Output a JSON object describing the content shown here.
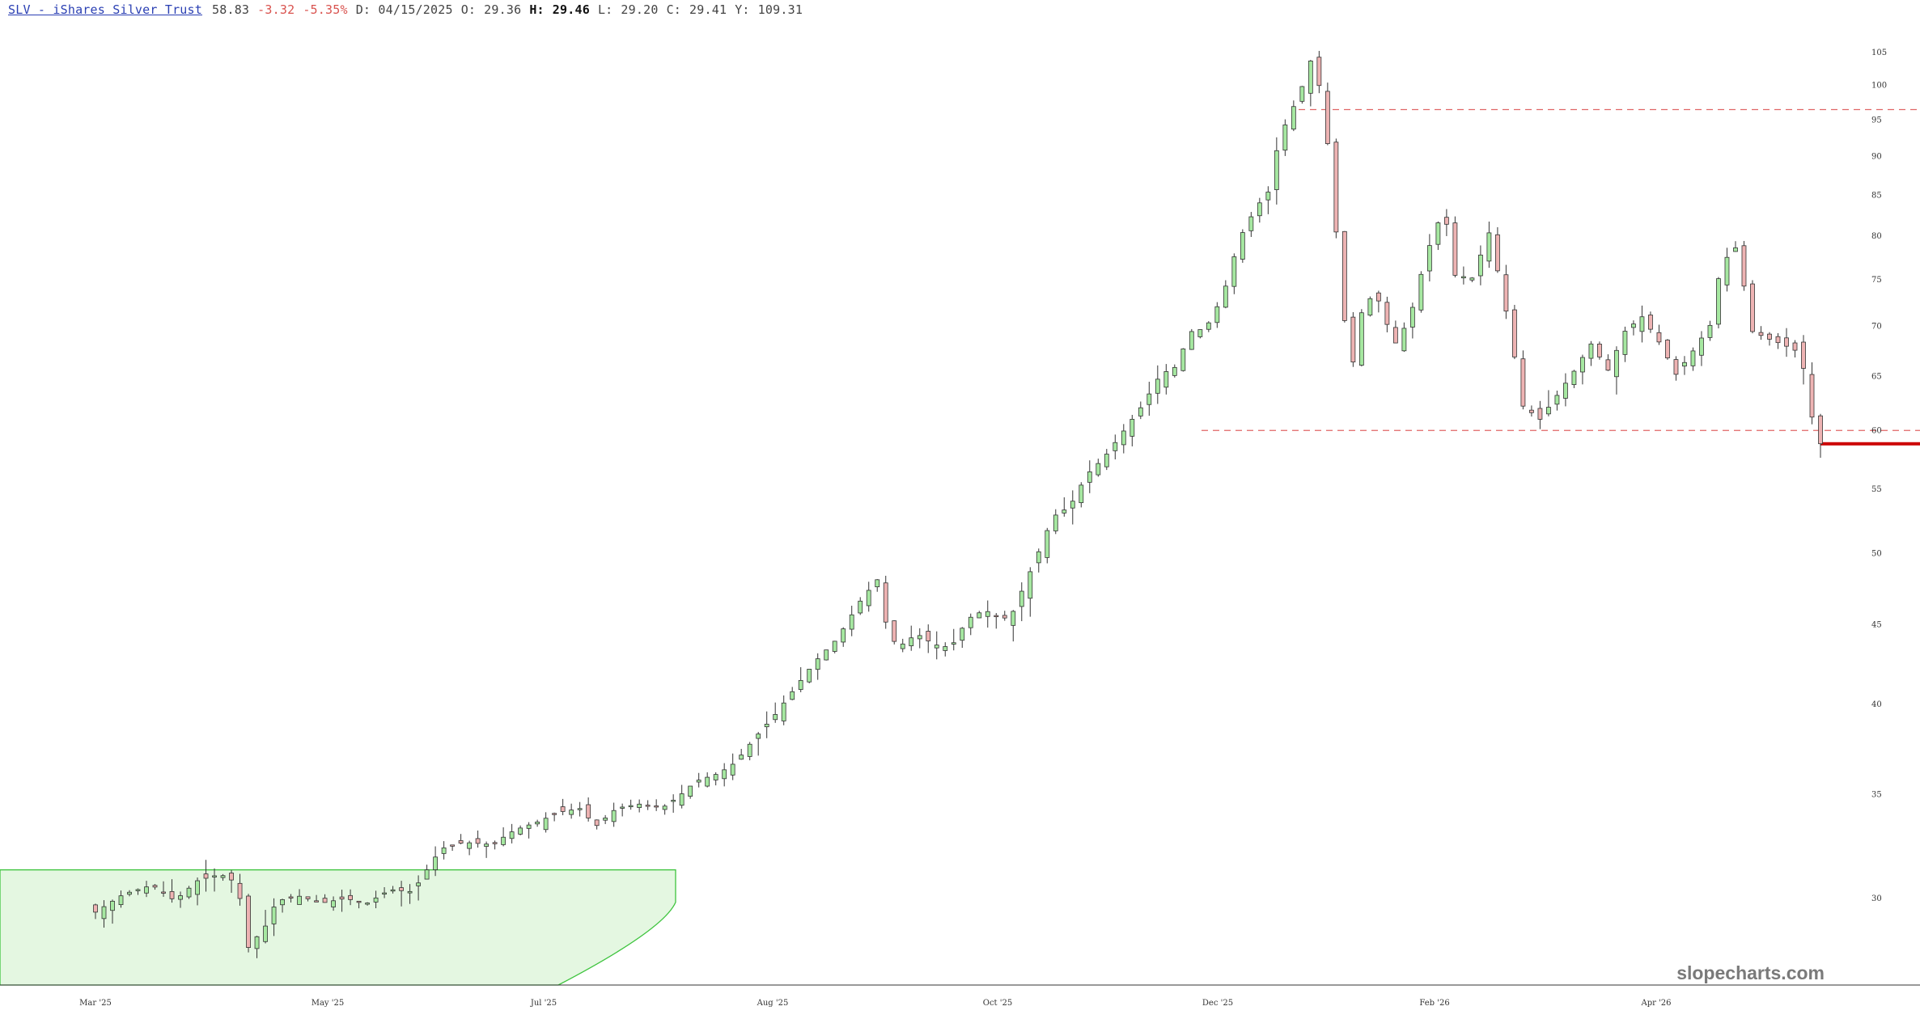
{
  "header": {
    "ticker": "SLV - iShares Silver Trust",
    "last": "58.83",
    "change": "-3.32",
    "change_pct": "-5.35%",
    "date": "D: 04/15/2025",
    "open_label": "O:",
    "open": "29.36",
    "high_label": "H:",
    "high": "29.46",
    "low_label": "L:",
    "low": "29.20",
    "close_label": "C:",
    "close": "29.41",
    "y_label": "Y:",
    "y_value": "109.31"
  },
  "watermark": "slopecharts.com",
  "colors": {
    "up": "#a6e8a1",
    "down": "#eeb3b3",
    "wick": "#333333",
    "line": "#e06666",
    "zone": "#e4f7e1",
    "zone_border": "#3ec43e",
    "axis": "#333333"
  },
  "chart_data": {
    "type": "candlestick",
    "title": "SLV - iShares Silver Trust",
    "y_scale": "log",
    "ylim": [
      27.5,
      112
    ],
    "yticks": [
      30,
      35,
      40,
      45,
      50,
      55,
      60,
      65,
      70,
      75,
      80,
      85,
      90,
      95,
      100,
      105
    ],
    "xticks": [
      "Mar '25",
      "May '25",
      "Jul '25",
      "Aug '25",
      "Oct '25",
      "Dec '25",
      "Feb '26",
      "Apr '26"
    ],
    "resistance_levels": [
      96.5,
      60.0
    ],
    "last_price_line": 58.83,
    "highlight_zone": {
      "from": "Feb '25",
      "to": "Jun '25",
      "top_value": 31.3
    },
    "anchors": [
      [
        0,
        29.4
      ],
      [
        10,
        30.2
      ],
      [
        20,
        30.6
      ],
      [
        28,
        29.9
      ],
      [
        36,
        30.8
      ],
      [
        44,
        31.1
      ],
      [
        50,
        30.7
      ],
      [
        54,
        27.9
      ],
      [
        60,
        28.8
      ],
      [
        64,
        29.9
      ],
      [
        72,
        30.1
      ],
      [
        80,
        29.8
      ],
      [
        88,
        30.0
      ],
      [
        96,
        29.8
      ],
      [
        104,
        30.4
      ],
      [
        112,
        30.3
      ],
      [
        116,
        31.1
      ],
      [
        122,
        32.3
      ],
      [
        130,
        32.6
      ],
      [
        140,
        32.5
      ],
      [
        148,
        33.2
      ],
      [
        156,
        33.6
      ],
      [
        164,
        34.1
      ],
      [
        172,
        34.3
      ],
      [
        176,
        33.3
      ],
      [
        184,
        34.3
      ],
      [
        192,
        34.5
      ],
      [
        200,
        34.3
      ],
      [
        206,
        34.9
      ],
      [
        212,
        35.7
      ],
      [
        220,
        36.1
      ],
      [
        226,
        36.7
      ],
      [
        232,
        37.9
      ],
      [
        240,
        39.4
      ],
      [
        248,
        41.2
      ],
      [
        254,
        42.6
      ],
      [
        262,
        44.1
      ],
      [
        270,
        46.6
      ],
      [
        276,
        48.1
      ],
      [
        280,
        44.2
      ],
      [
        284,
        43.6
      ],
      [
        290,
        44.4
      ],
      [
        296,
        43.7
      ],
      [
        302,
        43.5
      ],
      [
        308,
        45.4
      ],
      [
        314,
        46.0
      ],
      [
        320,
        45.3
      ],
      [
        324,
        45.9
      ],
      [
        332,
        49.6
      ],
      [
        338,
        52.8
      ],
      [
        344,
        53.6
      ],
      [
        350,
        56.2
      ],
      [
        356,
        57.6
      ],
      [
        362,
        59.6
      ],
      [
        370,
        62.4
      ],
      [
        376,
        65.2
      ],
      [
        382,
        66.0
      ],
      [
        386,
        69.4
      ],
      [
        392,
        69.8
      ],
      [
        398,
        73.2
      ],
      [
        404,
        79.8
      ],
      [
        410,
        83.6
      ],
      [
        414,
        85.4
      ],
      [
        418,
        92.6
      ],
      [
        424,
        97.8
      ],
      [
        428,
        101.9
      ],
      [
        430,
        105.5
      ],
      [
        436,
        89.0
      ],
      [
        440,
        72.0
      ],
      [
        444,
        66.4
      ],
      [
        448,
        73.1
      ],
      [
        454,
        72.6
      ],
      [
        458,
        67.8
      ],
      [
        464,
        70.8
      ],
      [
        470,
        78.0
      ],
      [
        476,
        83.4
      ],
      [
        480,
        75.5
      ],
      [
        486,
        75.2
      ],
      [
        492,
        80.4
      ],
      [
        498,
        71.6
      ],
      [
        504,
        62.2
      ],
      [
        510,
        61.0
      ],
      [
        516,
        63.2
      ],
      [
        522,
        65.5
      ],
      [
        528,
        68.2
      ],
      [
        534,
        65.6
      ],
      [
        540,
        69.5
      ],
      [
        546,
        71.0
      ],
      [
        552,
        68.4
      ],
      [
        558,
        65.2
      ],
      [
        564,
        67.5
      ],
      [
        570,
        70.1
      ],
      [
        574,
        76.8
      ],
      [
        580,
        79.0
      ],
      [
        584,
        69.6
      ],
      [
        590,
        68.8
      ],
      [
        596,
        68.1
      ],
      [
        602,
        67.3
      ],
      [
        606,
        61.2
      ],
      [
        609,
        58.83
      ]
    ]
  }
}
